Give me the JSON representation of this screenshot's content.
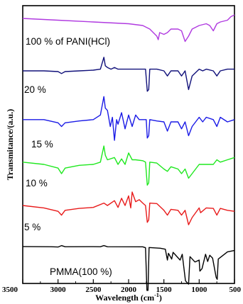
{
  "chart_data": {
    "type": "line",
    "xlabel": "Wavelength (cm",
    "xlabel_sup": "-1",
    "xlabel_end": ")",
    "ylabel": "Transmitance/(a.u.)",
    "xlim": [
      3500,
      500
    ],
    "x_reversed": true,
    "x_ticks": [
      "3500",
      "3000",
      "2500",
      "2000",
      "1500",
      "1000",
      "500"
    ],
    "y_ticks_shown": false,
    "series": [
      {
        "name": "PMMA(100 %)",
        "color": "#000000",
        "points": [
          [
            3500,
            0.6
          ],
          [
            3100,
            0.56
          ],
          [
            3000,
            0.5
          ],
          [
            2950,
            0.8
          ],
          [
            2900,
            0.56
          ],
          [
            2500,
            0.58
          ],
          [
            2400,
            0.56
          ],
          [
            2350,
            0.8
          ],
          [
            2300,
            0.56
          ],
          [
            1800,
            0.55
          ],
          [
            1760,
            0.35
          ],
          [
            1740,
            -8.5
          ],
          [
            1725,
            -8.5
          ],
          [
            1710,
            0.4
          ],
          [
            1550,
            0.25
          ],
          [
            1480,
            0.05
          ],
          [
            1450,
            -2.2
          ],
          [
            1435,
            -0.8
          ],
          [
            1390,
            -2.0
          ],
          [
            1370,
            -0.6
          ],
          [
            1270,
            -2.2
          ],
          [
            1240,
            -1.0
          ],
          [
            1195,
            -6.5
          ],
          [
            1150,
            -7.2
          ],
          [
            1130,
            -1.5
          ],
          [
            1060,
            -2.6
          ],
          [
            1000,
            -2.2
          ],
          [
            990,
            -4.5
          ],
          [
            960,
            -4.0
          ],
          [
            910,
            -1.0
          ],
          [
            880,
            -2.5
          ],
          [
            850,
            -1.2
          ],
          [
            810,
            -1.8
          ],
          [
            760,
            -5.8
          ],
          [
            745,
            -6.2
          ],
          [
            730,
            -2.0
          ],
          [
            600,
            -0.5
          ],
          [
            500,
            -0.2
          ]
        ]
      },
      {
        "name": "5 %",
        "color": "#e81a1a",
        "points": [
          [
            3500,
            0.0
          ],
          [
            3200,
            -0.5
          ],
          [
            3000,
            -1.2
          ],
          [
            2950,
            -2.0
          ],
          [
            2900,
            -1.0
          ],
          [
            2700,
            -0.6
          ],
          [
            2500,
            -0.4
          ],
          [
            2350,
            0.5
          ],
          [
            2300,
            0.0
          ],
          [
            2200,
            1.0
          ],
          [
            2150,
            -0.4
          ],
          [
            2100,
            1.5
          ],
          [
            2050,
            0.0
          ],
          [
            2000,
            2.0
          ],
          [
            1970,
            -0.5
          ],
          [
            1950,
            2.8
          ],
          [
            1900,
            0.8
          ],
          [
            1850,
            1.2
          ],
          [
            1800,
            0.5
          ],
          [
            1760,
            0.0
          ],
          [
            1735,
            -3.5
          ],
          [
            1715,
            -3.0
          ],
          [
            1700,
            0.5
          ],
          [
            1600,
            0.4
          ],
          [
            1500,
            -1.0
          ],
          [
            1450,
            -2.0
          ],
          [
            1400,
            -0.8
          ],
          [
            1300,
            -1.0
          ],
          [
            1250,
            -2.0
          ],
          [
            1200,
            -1.0
          ],
          [
            1150,
            -4.0
          ],
          [
            1100,
            -2.5
          ],
          [
            1000,
            -0.5
          ],
          [
            980,
            -1.5
          ],
          [
            900,
            -0.5
          ],
          [
            800,
            -0.6
          ],
          [
            750,
            -2.0
          ],
          [
            700,
            -0.6
          ],
          [
            600,
            -1.0
          ],
          [
            500,
            -1.2
          ]
        ]
      },
      {
        "name": "10 %",
        "color": "#1ee81e",
        "points": [
          [
            3500,
            0.5
          ],
          [
            3200,
            0.0
          ],
          [
            3000,
            -0.8
          ],
          [
            2950,
            -2.0
          ],
          [
            2900,
            -0.8
          ],
          [
            2700,
            -0.2
          ],
          [
            2500,
            0.0
          ],
          [
            2400,
            0.5
          ],
          [
            2350,
            4.0
          ],
          [
            2330,
            2.0
          ],
          [
            2300,
            1.0
          ],
          [
            2200,
            1.5
          ],
          [
            2150,
            0.0
          ],
          [
            2100,
            1.2
          ],
          [
            2050,
            0.0
          ],
          [
            2000,
            2.5
          ],
          [
            1950,
            1.0
          ],
          [
            1900,
            1.0
          ],
          [
            1800,
            0.8
          ],
          [
            1760,
            0.5
          ],
          [
            1735,
            -4.5
          ],
          [
            1715,
            -4.0
          ],
          [
            1700,
            0.5
          ],
          [
            1600,
            0.3
          ],
          [
            1500,
            -1.0
          ],
          [
            1450,
            -1.5
          ],
          [
            1400,
            -0.5
          ],
          [
            1300,
            -1.0
          ],
          [
            1250,
            -2.0
          ],
          [
            1200,
            -1.0
          ],
          [
            1150,
            -3.0
          ],
          [
            1100,
            -2.0
          ],
          [
            1000,
            0.0
          ],
          [
            900,
            0.0
          ],
          [
            800,
            0.0
          ],
          [
            750,
            1.0
          ],
          [
            700,
            0.5
          ],
          [
            600,
            1.0
          ],
          [
            500,
            1.5
          ]
        ]
      },
      {
        "name": "15 %",
        "color": "#1a1ae6",
        "points": [
          [
            3500,
            0.5
          ],
          [
            3200,
            0.5
          ],
          [
            3000,
            -0.2
          ],
          [
            2950,
            -1.0
          ],
          [
            2900,
            -0.2
          ],
          [
            2700,
            0.2
          ],
          [
            2500,
            0.5
          ],
          [
            2400,
            1.5
          ],
          [
            2350,
            5.5
          ],
          [
            2330,
            3.0
          ],
          [
            2300,
            2.5
          ],
          [
            2260,
            -1.0
          ],
          [
            2230,
            1.0
          ],
          [
            2200,
            -4.0
          ],
          [
            2170,
            0.5
          ],
          [
            2150,
            -0.5
          ],
          [
            2100,
            2.0
          ],
          [
            2050,
            -1.5
          ],
          [
            2000,
            1.5
          ],
          [
            1950,
            -1.0
          ],
          [
            1900,
            1.5
          ],
          [
            1850,
            0.5
          ],
          [
            1800,
            0.5
          ],
          [
            1750,
            0.5
          ],
          [
            1735,
            -3.5
          ],
          [
            1715,
            -3.0
          ],
          [
            1700,
            0.5
          ],
          [
            1600,
            0.2
          ],
          [
            1500,
            0.0
          ],
          [
            1450,
            -2.0
          ],
          [
            1400,
            0.0
          ],
          [
            1300,
            0.0
          ],
          [
            1250,
            -1.5
          ],
          [
            1200,
            0.0
          ],
          [
            1150,
            -3.0
          ],
          [
            1100,
            -1.0
          ],
          [
            1000,
            1.0
          ],
          [
            950,
            0.0
          ],
          [
            900,
            1.0
          ],
          [
            800,
            0.5
          ],
          [
            750,
            -1.0
          ],
          [
            700,
            1.0
          ],
          [
            600,
            0.0
          ],
          [
            500,
            0.5
          ]
        ]
      },
      {
        "name": "20 %",
        "color": "#10107a",
        "points": [
          [
            3500,
            0.0
          ],
          [
            3200,
            0.0
          ],
          [
            3000,
            -0.2
          ],
          [
            2950,
            -0.8
          ],
          [
            2900,
            -0.2
          ],
          [
            2700,
            0.0
          ],
          [
            2500,
            0.2
          ],
          [
            2400,
            0.5
          ],
          [
            2350,
            4.0
          ],
          [
            2330,
            1.5
          ],
          [
            2300,
            1.0
          ],
          [
            2250,
            0.5
          ],
          [
            2200,
            1.0
          ],
          [
            2150,
            0.5
          ],
          [
            2050,
            0.5
          ],
          [
            1900,
            0.5
          ],
          [
            1800,
            0.5
          ],
          [
            1760,
            0.5
          ],
          [
            1735,
            -6.0
          ],
          [
            1715,
            -5.5
          ],
          [
            1700,
            0.5
          ],
          [
            1600,
            0.5
          ],
          [
            1500,
            0.0
          ],
          [
            1450,
            -1.5
          ],
          [
            1400,
            0.0
          ],
          [
            1300,
            0.0
          ],
          [
            1250,
            -1.5
          ],
          [
            1200,
            0.0
          ],
          [
            1150,
            -5.5
          ],
          [
            1100,
            -1.5
          ],
          [
            1000,
            0.5
          ],
          [
            950,
            0.0
          ],
          [
            900,
            0.5
          ],
          [
            800,
            0.0
          ],
          [
            750,
            -1.5
          ],
          [
            700,
            0.0
          ],
          [
            600,
            0.5
          ],
          [
            500,
            0.5
          ]
        ]
      },
      {
        "name": "100 % of PANI(HCl)",
        "color": "#b03ae0",
        "points": [
          [
            3500,
            0.0
          ],
          [
            3000,
            -0.5
          ],
          [
            2500,
            -1.0
          ],
          [
            2000,
            -1.5
          ],
          [
            1800,
            -2.0
          ],
          [
            1700,
            -3.0
          ],
          [
            1600,
            -5.0
          ],
          [
            1580,
            -6.0
          ],
          [
            1560,
            -4.0
          ],
          [
            1500,
            -4.5
          ],
          [
            1450,
            -4.0
          ],
          [
            1400,
            -3.0
          ],
          [
            1300,
            -3.0
          ],
          [
            1250,
            -3.5
          ],
          [
            1200,
            -6.5
          ],
          [
            1150,
            -5.0
          ],
          [
            1100,
            -3.0
          ],
          [
            1000,
            -2.0
          ],
          [
            900,
            -1.5
          ],
          [
            850,
            -2.0
          ],
          [
            800,
            -3.5
          ],
          [
            750,
            -1.5
          ],
          [
            700,
            -1.0
          ],
          [
            600,
            -0.5
          ],
          [
            550,
            0.5
          ],
          [
            500,
            1.0
          ]
        ]
      }
    ]
  }
}
